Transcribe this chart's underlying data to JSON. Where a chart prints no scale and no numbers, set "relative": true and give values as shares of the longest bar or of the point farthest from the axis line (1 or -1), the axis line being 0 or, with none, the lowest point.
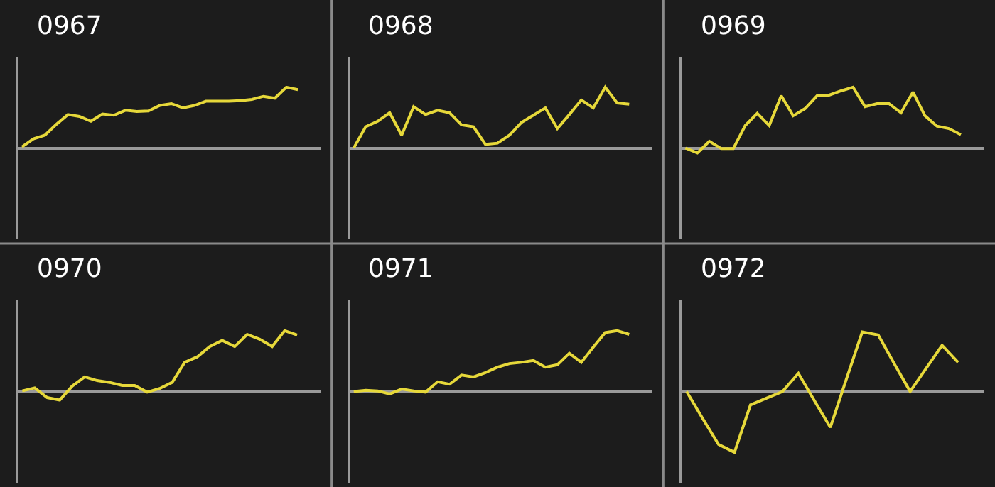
{
  "chart_data": [
    {
      "type": "line",
      "title": "0967",
      "relative": true,
      "grid": false,
      "categories": [
        null,
        null,
        null,
        null,
        null,
        null,
        null,
        null,
        null,
        null,
        null,
        null,
        null,
        null,
        null,
        null,
        null,
        null,
        null,
        null,
        null,
        null,
        null,
        null,
        null
      ],
      "series": [
        {
          "color": "#e6d83a",
          "values": [
            0.02,
            0.15,
            0.21,
            0.39,
            0.55,
            0.52,
            0.44,
            0.56,
            0.54,
            0.62,
            0.6,
            0.61,
            0.7,
            0.73,
            0.66,
            0.7,
            0.77,
            0.77,
            0.77,
            0.78,
            0.8,
            0.85,
            0.82,
            1.0,
            0.96
          ]
        }
      ]
    },
    {
      "type": "line",
      "title": "0968",
      "relative": true,
      "grid": false,
      "categories": [
        null,
        null,
        null,
        null,
        null,
        null,
        null,
        null,
        null,
        null,
        null,
        null,
        null,
        null,
        null,
        null,
        null,
        null,
        null,
        null,
        null,
        null,
        null,
        null
      ],
      "series": [
        {
          "color": "#e6d83a",
          "values": [
            0,
            0.35,
            0.44,
            0.58,
            0.21,
            0.68,
            0.55,
            0.62,
            0.58,
            0.38,
            0.35,
            0.06,
            0.08,
            0.21,
            0.42,
            0.54,
            0.66,
            0.32,
            0.55,
            0.79,
            0.66,
            1.0,
            0.74,
            0.72
          ]
        }
      ]
    },
    {
      "type": "line",
      "title": "0969",
      "relative": true,
      "grid": false,
      "categories": [
        null,
        null,
        null,
        null,
        null,
        null,
        null,
        null,
        null,
        null,
        null,
        null,
        null,
        null,
        null,
        null,
        null,
        null,
        null,
        null,
        null,
        null,
        null,
        null
      ],
      "series": [
        {
          "color": "#e6d83a",
          "values": [
            0,
            -0.08,
            0.11,
            -0.01,
            -0.01,
            0.37,
            0.57,
            0.37,
            0.86,
            0.53,
            0.65,
            0.86,
            0.87,
            0.94,
            1.0,
            0.68,
            0.73,
            0.73,
            0.58,
            0.92,
            0.53,
            0.36,
            0.32,
            0.22
          ]
        }
      ]
    },
    {
      "type": "line",
      "title": "0970",
      "relative": true,
      "grid": false,
      "categories": [
        null,
        null,
        null,
        null,
        null,
        null,
        null,
        null,
        null,
        null,
        null,
        null,
        null,
        null,
        null,
        null,
        null,
        null,
        null,
        null,
        null,
        null,
        null
      ],
      "series": [
        {
          "color": "#e6d83a",
          "values": [
            0.01,
            0.06,
            -0.1,
            -0.14,
            0.09,
            0.24,
            0.18,
            0.15,
            0.1,
            0.1,
            -0.01,
            0.05,
            0.15,
            0.48,
            0.57,
            0.74,
            0.84,
            0.74,
            0.94,
            0.86,
            0.74,
            1.0,
            0.93
          ]
        }
      ]
    },
    {
      "type": "line",
      "title": "0971",
      "relative": true,
      "grid": false,
      "categories": [
        null,
        null,
        null,
        null,
        null,
        null,
        null,
        null,
        null,
        null,
        null,
        null,
        null,
        null,
        null,
        null,
        null,
        null,
        null,
        null,
        null,
        null,
        null,
        null
      ],
      "series": [
        {
          "color": "#e6d83a",
          "values": [
            0,
            0.02,
            0.01,
            -0.04,
            0.04,
            0.01,
            -0.01,
            0.16,
            0.12,
            0.27,
            0.24,
            0.31,
            0.4,
            0.46,
            0.48,
            0.51,
            0.4,
            0.44,
            0.63,
            0.48,
            0.73,
            0.97,
            1.0,
            0.94
          ]
        }
      ]
    },
    {
      "type": "line",
      "title": "0972",
      "relative": true,
      "grid": false,
      "categories": [
        null,
        null,
        null,
        null,
        null,
        null,
        null,
        null,
        null,
        null,
        null,
        null,
        null,
        null,
        null,
        null,
        null,
        null
      ],
      "series": [
        {
          "color": "#e6d83a",
          "values": [
            0,
            -0.44,
            -0.87,
            -1.0,
            -0.22,
            -0.11,
            0,
            0.3,
            -0.15,
            -0.59,
            0.2,
            0.98,
            0.93,
            0.46,
            0,
            0.38,
            0.76,
            0.48
          ]
        }
      ]
    }
  ]
}
